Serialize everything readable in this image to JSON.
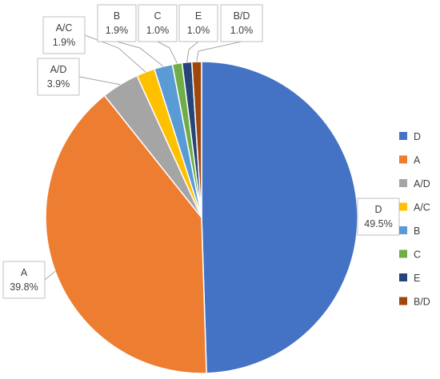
{
  "chart_data": {
    "type": "pie",
    "title": "",
    "slices": [
      {
        "label": "D",
        "value": 49.5,
        "display": "49.5%",
        "color": "#4472C4"
      },
      {
        "label": "A",
        "value": 39.8,
        "display": "39.8%",
        "color": "#ED7D31"
      },
      {
        "label": "A/D",
        "value": 3.9,
        "display": "3.9%",
        "color": "#A5A5A5"
      },
      {
        "label": "A/C",
        "value": 1.9,
        "display": "1.9%",
        "color": "#FFC000"
      },
      {
        "label": "B",
        "value": 1.9,
        "display": "1.9%",
        "color": "#5B9BD5"
      },
      {
        "label": "C",
        "value": 1.0,
        "display": "1.0%",
        "color": "#70AD47"
      },
      {
        "label": "E",
        "value": 1.0,
        "display": "1.0%",
        "color": "#264478"
      },
      {
        "label": "B/D",
        "value": 1.0,
        "display": "1.0%",
        "color": "#9E480E"
      }
    ],
    "legend": {
      "placement": "right",
      "items": [
        "D",
        "A",
        "A/D",
        "A/C",
        "B",
        "C",
        "E",
        "B/D"
      ]
    }
  }
}
